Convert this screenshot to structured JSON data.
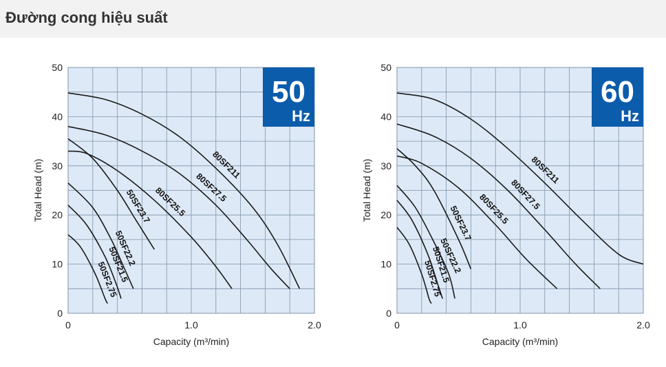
{
  "header": {
    "title": "Đường cong hiệu suất"
  },
  "colors": {
    "plot_bg": "#dde9f6",
    "grid": "#7f93aa",
    "curve": "#1a1a1a",
    "badge_bg": "#0b5cab",
    "badge_text": "#ffffff"
  },
  "chart_data": [
    {
      "type": "line",
      "badge": {
        "value": "50",
        "unit": "Hz"
      },
      "xlabel": "Capacity (m³/min)",
      "ylabel": "Total Head (m)",
      "xlim": [
        0,
        2.0
      ],
      "ylim": [
        0,
        50
      ],
      "xticks": [
        "0",
        "1.0",
        "2.0"
      ],
      "yticks": [
        "0",
        "10",
        "20",
        "30",
        "40",
        "50"
      ],
      "grid": true,
      "series": [
        {
          "name": "80SF211",
          "points": [
            [
              0,
              44.8
            ],
            [
              0.3,
              43.5
            ],
            [
              0.6,
              40.5
            ],
            [
              0.9,
              36
            ],
            [
              1.2,
              29.5
            ],
            [
              1.5,
              21.5
            ],
            [
              1.7,
              14
            ],
            [
              1.88,
              5
            ]
          ]
        },
        {
          "name": "80SF27.5",
          "points": [
            [
              0,
              38
            ],
            [
              0.3,
              36.3
            ],
            [
              0.6,
              33
            ],
            [
              0.9,
              28.5
            ],
            [
              1.2,
              22
            ],
            [
              1.45,
              15
            ],
            [
              1.65,
              9
            ],
            [
              1.8,
              5
            ]
          ]
        },
        {
          "name": "80SF25.5",
          "points": [
            [
              0,
              33
            ],
            [
              0.15,
              32.5
            ],
            [
              0.4,
              29
            ],
            [
              0.7,
              23
            ],
            [
              1.0,
              15.5
            ],
            [
              1.2,
              9.5
            ],
            [
              1.33,
              5
            ]
          ]
        },
        {
          "name": "50SF23.7",
          "points": [
            [
              0,
              35.5
            ],
            [
              0.2,
              31.5
            ],
            [
              0.4,
              25
            ],
            [
              0.55,
              19
            ],
            [
              0.7,
              13
            ]
          ]
        },
        {
          "name": "50SF22.2",
          "points": [
            [
              0,
              26.5
            ],
            [
              0.2,
              21.5
            ],
            [
              0.35,
              15
            ],
            [
              0.45,
              9.5
            ],
            [
              0.53,
              5
            ]
          ]
        },
        {
          "name": "50SF21.5",
          "points": [
            [
              0,
              22
            ],
            [
              0.15,
              18
            ],
            [
              0.3,
              11.5
            ],
            [
              0.39,
              6
            ],
            [
              0.43,
              3
            ]
          ]
        },
        {
          "name": "50SF2.75",
          "points": [
            [
              0,
              16
            ],
            [
              0.1,
              13.5
            ],
            [
              0.22,
              8
            ],
            [
              0.3,
              3
            ],
            [
              0.32,
              2
            ]
          ]
        }
      ]
    },
    {
      "type": "line",
      "badge": {
        "value": "60",
        "unit": "Hz"
      },
      "xlabel": "Capacity (m³/min)",
      "ylabel": "Total Head (m)",
      "xlim": [
        0,
        2.0
      ],
      "ylim": [
        0,
        50
      ],
      "xticks": [
        "0",
        "1.0",
        "2.0"
      ],
      "yticks": [
        "0",
        "10",
        "20",
        "30",
        "40",
        "50"
      ],
      "grid": true,
      "series": [
        {
          "name": "80SF211",
          "points": [
            [
              0,
              44.8
            ],
            [
              0.3,
              43.5
            ],
            [
              0.6,
              39.5
            ],
            [
              0.9,
              33.5
            ],
            [
              1.2,
              26.5
            ],
            [
              1.5,
              19
            ],
            [
              1.8,
              12
            ],
            [
              2.0,
              10
            ]
          ]
        },
        {
          "name": "80SF27.5",
          "points": [
            [
              0,
              38.5
            ],
            [
              0.3,
              36
            ],
            [
              0.6,
              31.5
            ],
            [
              0.9,
              25
            ],
            [
              1.2,
              17
            ],
            [
              1.45,
              10
            ],
            [
              1.65,
              5
            ]
          ]
        },
        {
          "name": "80SF25.5",
          "points": [
            [
              0,
              32
            ],
            [
              0.2,
              30.5
            ],
            [
              0.5,
              25.5
            ],
            [
              0.8,
              18
            ],
            [
              1.05,
              11
            ],
            [
              1.3,
              5
            ]
          ]
        },
        {
          "name": "50SF23.7",
          "points": [
            [
              0,
              33.5
            ],
            [
              0.15,
              30
            ],
            [
              0.3,
              25
            ],
            [
              0.5,
              15
            ],
            [
              0.6,
              9
            ]
          ]
        },
        {
          "name": "50SF22.2",
          "points": [
            [
              0,
              26
            ],
            [
              0.15,
              21.5
            ],
            [
              0.3,
              14.5
            ],
            [
              0.42,
              8
            ],
            [
              0.47,
              3
            ]
          ]
        },
        {
          "name": "50SF21.5",
          "points": [
            [
              0,
              23
            ],
            [
              0.12,
              19
            ],
            [
              0.25,
              12
            ],
            [
              0.33,
              6
            ],
            [
              0.37,
              3
            ]
          ]
        },
        {
          "name": "50SF2.75",
          "points": [
            [
              0,
              17.5
            ],
            [
              0.1,
              14
            ],
            [
              0.2,
              8
            ],
            [
              0.26,
              3
            ],
            [
              0.28,
              2
            ]
          ]
        }
      ]
    }
  ]
}
